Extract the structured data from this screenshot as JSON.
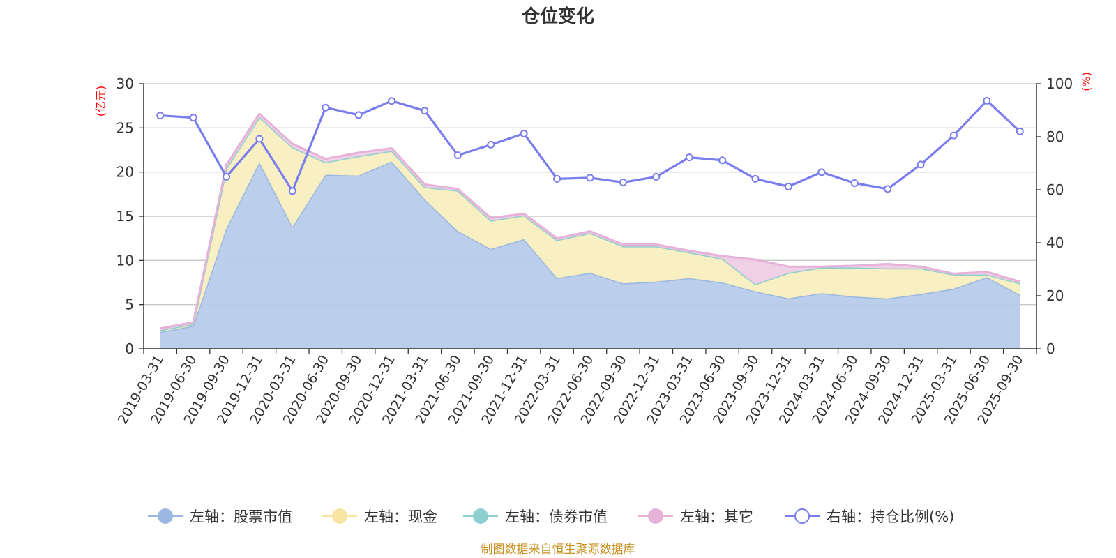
{
  "chart_data": {
    "type": "area",
    "title": "仓位变化",
    "footer": "制图数据来自恒生聚源数据库",
    "left_axis": {
      "unit": "(亿元)",
      "ylim": [
        0,
        30
      ],
      "ticks": [
        "0",
        "5",
        "10",
        "15",
        "20",
        "25",
        "30"
      ]
    },
    "right_axis": {
      "unit": "(%)",
      "ylim": [
        0,
        100
      ],
      "ticks": [
        "0",
        "20",
        "40",
        "60",
        "80",
        "100"
      ]
    },
    "categories": [
      "2019-03-31",
      "2019-06-30",
      "2019-09-30",
      "2019-12-31",
      "2020-03-31",
      "2020-06-30",
      "2020-09-30",
      "2020-12-31",
      "2021-03-31",
      "2021-06-30",
      "2021-09-30",
      "2021-12-31",
      "2022-03-31",
      "2022-06-30",
      "2022-09-30",
      "2022-12-31",
      "2023-03-31",
      "2023-06-30",
      "2023-09-30",
      "2023-12-31",
      "2024-03-31",
      "2024-06-30",
      "2024-09-30",
      "2024-12-31",
      "2025-03-31",
      "2025-06-30",
      "2025-09-30"
    ],
    "series": [
      {
        "name": "左轴：股票市值",
        "axis": "left",
        "kind": "stack-area",
        "color": "#9bb8e3",
        "fill": "#b7cbea",
        "values": [
          1.9,
          2.6,
          13.6,
          21.1,
          13.8,
          19.7,
          19.6,
          21.2,
          16.9,
          13.3,
          11.3,
          12.4,
          8.0,
          8.6,
          7.4,
          7.6,
          8.0,
          7.5,
          6.5,
          5.7,
          6.3,
          5.9,
          5.7,
          6.2,
          6.8,
          8.1,
          6.1
        ]
      },
      {
        "name": "左轴：现金",
        "axis": "left",
        "kind": "stack-area",
        "color": "#f7e5a1",
        "fill": "#f8eebf",
        "values": [
          0.2,
          0.2,
          6.8,
          5.1,
          9.0,
          1.4,
          2.2,
          1.2,
          1.4,
          4.6,
          3.2,
          2.6,
          4.3,
          4.5,
          4.2,
          4.0,
          2.9,
          2.7,
          0.8,
          2.9,
          2.9,
          3.3,
          3.4,
          2.9,
          1.6,
          0.3,
          1.3
        ]
      },
      {
        "name": "左轴：债券市值",
        "axis": "left",
        "kind": "stack-area",
        "color": "#8ecfd0",
        "fill": "#bfe4e4",
        "values": [
          0,
          0,
          0,
          0,
          0,
          0,
          0,
          0,
          0,
          0,
          0,
          0.1,
          0,
          0,
          0,
          0,
          0,
          0,
          0,
          0,
          0,
          0,
          0,
          0,
          0,
          0,
          0
        ]
      },
      {
        "name": "左轴：其它",
        "axis": "left",
        "kind": "stack-area",
        "color": "#e6b2d8",
        "fill": "#efcde6",
        "values": [
          0.2,
          0.2,
          0.4,
          0.4,
          0.4,
          0.4,
          0.4,
          0.3,
          0.3,
          0.2,
          0.3,
          0.2,
          0.2,
          0.2,
          0.2,
          0.2,
          0.2,
          0.3,
          2.8,
          0.7,
          0.1,
          0.2,
          0.5,
          0.2,
          0.1,
          0.3,
          0.2
        ]
      },
      {
        "name": "右轴：持仓比例(%)",
        "axis": "right",
        "kind": "line",
        "color": "#7a7ded",
        "values": [
          88.0,
          87.2,
          64.9,
          79.2,
          59.5,
          91.0,
          88.2,
          93.5,
          89.8,
          73.0,
          77.0,
          81.2,
          64.1,
          64.5,
          62.8,
          64.9,
          72.2,
          71.1,
          64.1,
          61.2,
          66.6,
          62.5,
          60.3,
          69.5,
          80.5,
          93.6,
          82.0
        ]
      }
    ]
  }
}
